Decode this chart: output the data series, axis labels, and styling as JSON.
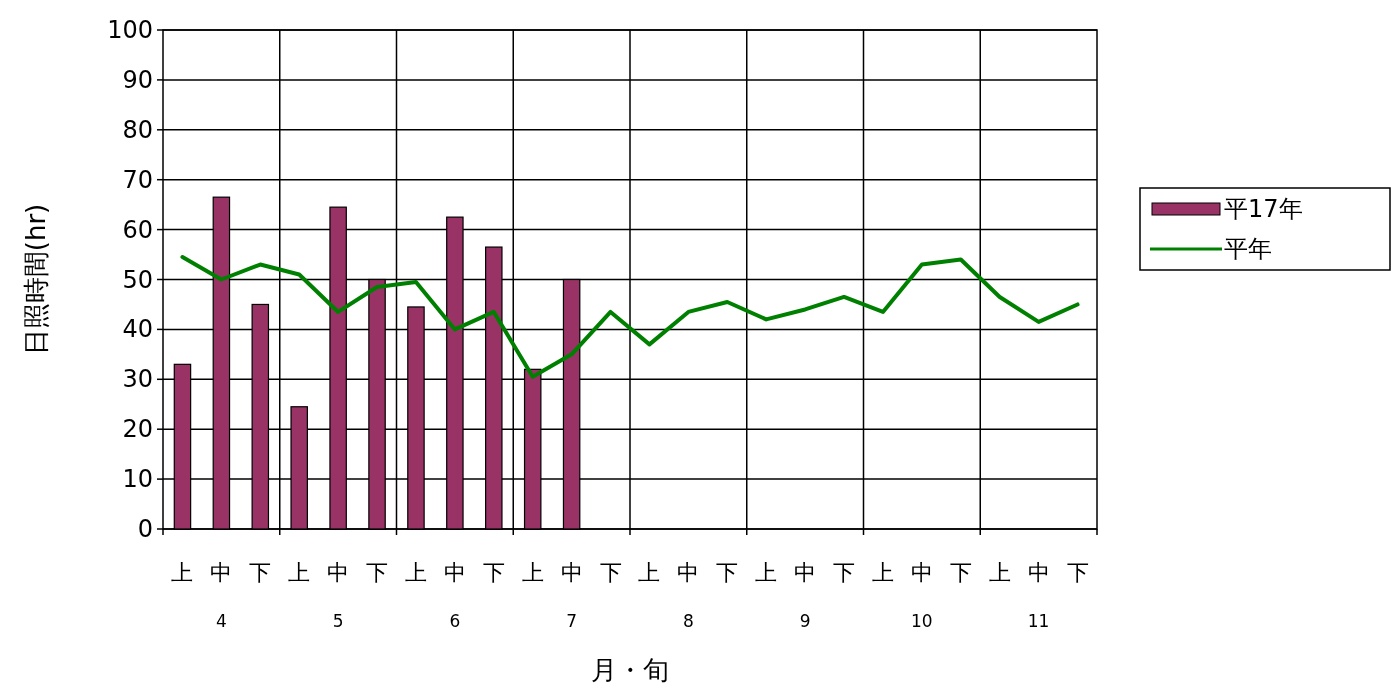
{
  "chart_data": {
    "type": "bar",
    "ylabel": "日照時間(hr)",
    "xlabel": "月・旬",
    "categories": [
      "上",
      "中",
      "下",
      "上",
      "中",
      "下",
      "上",
      "中",
      "下",
      "上",
      "中",
      "下",
      "上",
      "中",
      "下",
      "上",
      "中",
      "下",
      "上",
      "中",
      "下",
      "上",
      "中",
      "下"
    ],
    "series": [
      {
        "name": "平17年",
        "color": "#993366",
        "values": [
          33,
          66.5,
          45,
          24.5,
          64.5,
          50,
          44.5,
          62.5,
          56.5,
          32,
          50,
          null,
          null,
          null,
          null,
          null,
          null,
          null,
          null,
          null,
          null,
          null,
          null,
          null
        ]
      },
      {
        "name": "平年",
        "color": "#008000",
        "type": "line",
        "values": [
          54.5,
          50,
          53,
          51,
          43.5,
          48.5,
          49.5,
          40,
          43.5,
          30.5,
          35,
          43.5,
          37,
          43.5,
          45.5,
          42,
          44,
          46.5,
          43.5,
          53,
          54,
          46.5,
          41.5,
          45
        ]
      }
    ],
    "ylim": [
      0,
      100
    ],
    "yticks": [
      0,
      10,
      20,
      30,
      40,
      50,
      60,
      70,
      80,
      90,
      100
    ],
    "annotations": [
      "4",
      "5",
      "6",
      "7",
      "8",
      "9",
      "10",
      "11"
    ],
    "grid": true,
    "legend": "right"
  }
}
